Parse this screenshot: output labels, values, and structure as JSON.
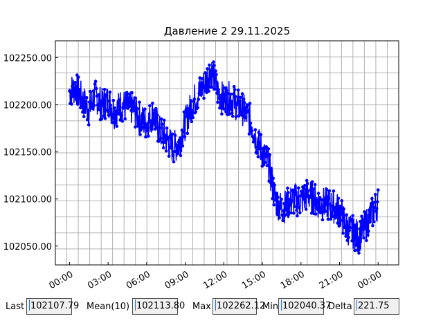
{
  "chart_data": {
    "type": "line",
    "title": "Давление 2 29.11.2025",
    "xlabel": "",
    "ylabel": "",
    "x_unit": "hours since 00:00",
    "xlim": [
      -1.1,
      25.6
    ],
    "ylim": [
      102030,
      102268
    ],
    "xticks": [
      0,
      3,
      6,
      9,
      12,
      15,
      18,
      21,
      24
    ],
    "xtick_labels": [
      "00:00",
      "03:00",
      "06:00",
      "09:00",
      "12:00",
      "15:00",
      "18:00",
      "21:00",
      "00:00"
    ],
    "yticks": [
      102050,
      102100,
      102150,
      102200,
      102250
    ],
    "ytick_labels": [
      "102050.00",
      "102100.00",
      "102150.00",
      "102200.00",
      "102250.00"
    ],
    "grid": true,
    "series": [
      {
        "name": "",
        "color": "#0000ff",
        "marker": "circle",
        "x": [
          0,
          0.5,
          1,
          1.5,
          2,
          2.5,
          3,
          3.5,
          4,
          4.5,
          5,
          5.5,
          6,
          6.5,
          7,
          7.5,
          8,
          8.5,
          9,
          9.5,
          10,
          10.5,
          11,
          11.5,
          12,
          12.5,
          13,
          13.5,
          14,
          14.5,
          15,
          15.5,
          16,
          16.5,
          17,
          17.5,
          18,
          18.5,
          19,
          19.5,
          20,
          20.5,
          21,
          21.5,
          22,
          22.5,
          23,
          23.5,
          24
        ],
        "y": [
          102215,
          102218,
          102205,
          102195,
          102210,
          102200,
          102205,
          102192,
          102200,
          102198,
          102195,
          102185,
          102180,
          102190,
          102172,
          102165,
          102155,
          102158,
          102180,
          102200,
          102212,
          102222,
          102238,
          102215,
          102205,
          102208,
          102200,
          102195,
          102185,
          102165,
          102150,
          102135,
          102100,
          102090,
          102095,
          102100,
          102098,
          102105,
          102100,
          102095,
          102095,
          102092,
          102088,
          102070,
          102065,
          102060,
          102070,
          102085,
          102095
        ]
      }
    ],
    "stats": [
      {
        "label": "Last",
        "value": "102107.79"
      },
      {
        "label": "Mean(10)",
        "value": "102113.80"
      },
      {
        "label": "Max",
        "value": "102262.12"
      },
      {
        "label": "Min",
        "value": "102040.37"
      },
      {
        "label": "Delta",
        "value": "221.75"
      }
    ]
  }
}
